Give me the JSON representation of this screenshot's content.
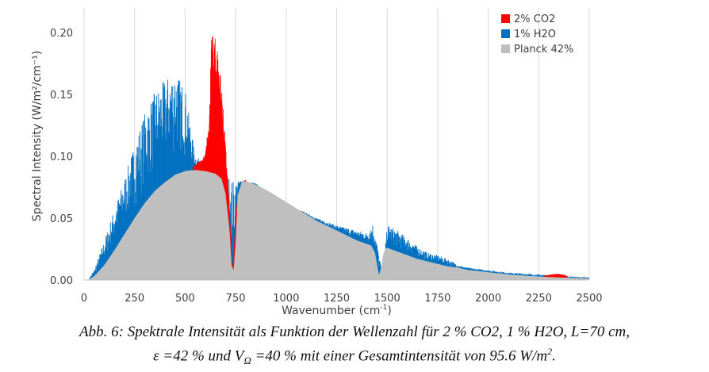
{
  "chart_data": {
    "type": "area",
    "xlabel_text": "Wavenumber (cm",
    "xlabel_sup": "-1",
    "xlabel_close": ")",
    "ylabel": "Spectral Intensity (W/m²/cm⁻¹)",
    "xlim": [
      0,
      2500
    ],
    "ylim": [
      0,
      0.22
    ],
    "x_ticks": [
      0,
      250,
      500,
      750,
      1000,
      1250,
      1500,
      1750,
      2000,
      2250,
      2500
    ],
    "x_tick_labels": [
      "0",
      "250",
      "500",
      "750",
      "1000",
      "1250",
      "1500",
      "1750",
      "2000",
      "2250",
      "2500"
    ],
    "y_ticks": [
      0.0,
      0.05,
      0.1,
      0.15,
      0.2
    ],
    "y_tick_labels": [
      "0.00",
      "0.05",
      "0.10",
      "0.15",
      "0.20"
    ],
    "grid": "vertical",
    "legend_position": "top-right",
    "series": [
      {
        "name": "2% CO2",
        "color": "#ff0000",
        "x": [
          540,
          560,
          580,
          600,
          620,
          630,
          640,
          650,
          660,
          670,
          680,
          690,
          700,
          710,
          720,
          725,
          730,
          735,
          740,
          745,
          750,
          760,
          770,
          780,
          790,
          800
        ],
        "values": [
          0.092,
          0.095,
          0.097,
          0.102,
          0.135,
          0.195,
          0.199,
          0.196,
          0.19,
          0.178,
          0.16,
          0.135,
          0.11,
          0.085,
          0.06,
          0.04,
          0.018,
          0.012,
          0.015,
          0.035,
          0.055,
          0.065,
          0.072,
          0.077,
          0.08,
          0.081
        ],
        "band2_x": [
          2280,
          2300,
          2320,
          2340,
          2360,
          2380,
          2390
        ],
        "band2_values": [
          0.0035,
          0.004,
          0.0045,
          0.0048,
          0.0045,
          0.0038,
          0.003
        ]
      },
      {
        "name": "1% H2O",
        "color": "#0070c0",
        "x": [
          20,
          50,
          100,
          150,
          200,
          250,
          300,
          350,
          400,
          450,
          500,
          550,
          600,
          650,
          700,
          750,
          800,
          850,
          900,
          950,
          1000,
          1050,
          1100,
          1150,
          1200,
          1250,
          1300,
          1350,
          1400,
          1430,
          1450,
          1470,
          1490,
          1500,
          1550,
          1600,
          1650,
          1700,
          1750,
          1800,
          1850,
          1900,
          1950,
          2000,
          2100,
          2200,
          2300,
          2400,
          2500
        ],
        "values": [
          0.0,
          0.008,
          0.032,
          0.058,
          0.082,
          0.11,
          0.135,
          0.152,
          0.162,
          0.17,
          0.155,
          0.1,
          0.095,
          0.09,
          0.085,
          0.08,
          0.08,
          0.078,
          0.072,
          0.066,
          0.062,
          0.058,
          0.054,
          0.05,
          0.047,
          0.044,
          0.042,
          0.04,
          0.038,
          0.046,
          0.03,
          0.01,
          0.025,
          0.045,
          0.04,
          0.034,
          0.027,
          0.022,
          0.02,
          0.017,
          0.012,
          0.01,
          0.009,
          0.008,
          0.006,
          0.005,
          0.004,
          0.003,
          0.002
        ]
      },
      {
        "name": "Planck 42%",
        "color": "#bfbfbf",
        "x": [
          20,
          50,
          100,
          150,
          200,
          250,
          300,
          350,
          400,
          450,
          500,
          550,
          600,
          650,
          680,
          700,
          720,
          730,
          740,
          750,
          760,
          780,
          800,
          850,
          900,
          950,
          1000,
          1050,
          1100,
          1150,
          1200,
          1250,
          1300,
          1350,
          1400,
          1420,
          1440,
          1450,
          1460,
          1470,
          1480,
          1490,
          1500,
          1550,
          1600,
          1650,
          1700,
          1750,
          1800,
          1850,
          1900,
          1950,
          2000,
          2100,
          2200,
          2300,
          2400,
          2500
        ],
        "values": [
          0.0,
          0.003,
          0.012,
          0.024,
          0.037,
          0.05,
          0.062,
          0.072,
          0.079,
          0.085,
          0.088,
          0.089,
          0.088,
          0.086,
          0.082,
          0.07,
          0.04,
          0.012,
          0.008,
          0.03,
          0.068,
          0.079,
          0.08,
          0.077,
          0.073,
          0.068,
          0.063,
          0.058,
          0.053,
          0.048,
          0.044,
          0.04,
          0.036,
          0.032,
          0.029,
          0.028,
          0.022,
          0.012,
          0.004,
          0.01,
          0.02,
          0.025,
          0.026,
          0.023,
          0.02,
          0.017,
          0.015,
          0.013,
          0.011,
          0.01,
          0.008,
          0.0072,
          0.0062,
          0.0045,
          0.0033,
          0.0024,
          0.0017,
          0.0012
        ]
      }
    ]
  },
  "caption": {
    "line1": "Abb. 6: Spektrale Intensität als Funktion der Wellenzahl für 2 % CO2, 1 % H2O, L=70 cm,",
    "line2_eps": "ε =42 % und V",
    "line2_sub": "Ω",
    "line2_rest": " =40 % mit einer Gesamtintensität von   95.6 W/m",
    "line2_sup": "2",
    "line2_end": "."
  }
}
